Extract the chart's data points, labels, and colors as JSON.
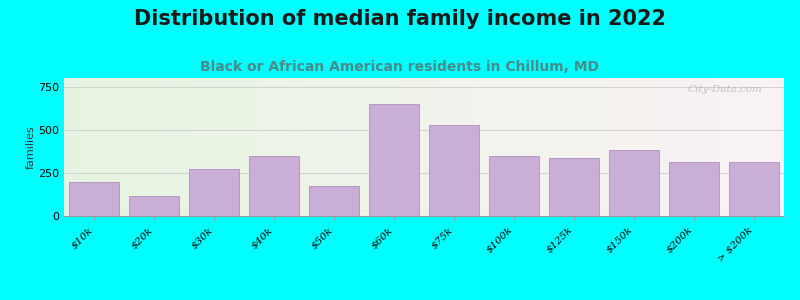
{
  "title": "Distribution of median family income in 2022",
  "subtitle": "Black or African American residents in Chillum, MD",
  "ylabel": "families",
  "categories": [
    "$10k",
    "$20k",
    "$30k",
    "$40k",
    "$50k",
    "$60k",
    "$75k",
    "$100k",
    "$125k",
    "$150k",
    "$200k",
    "> $200k"
  ],
  "values": [
    200,
    115,
    275,
    350,
    175,
    650,
    525,
    345,
    335,
    385,
    315,
    315
  ],
  "bar_color": "#c9aed6",
  "bar_edge_color": "#b090c0",
  "background_color": "#00ffff",
  "ylim": [
    0,
    800
  ],
  "yticks": [
    0,
    250,
    500,
    750
  ],
  "title_fontsize": 15,
  "subtitle_fontsize": 10,
  "ylabel_fontsize": 8,
  "watermark": "City-Data.com"
}
